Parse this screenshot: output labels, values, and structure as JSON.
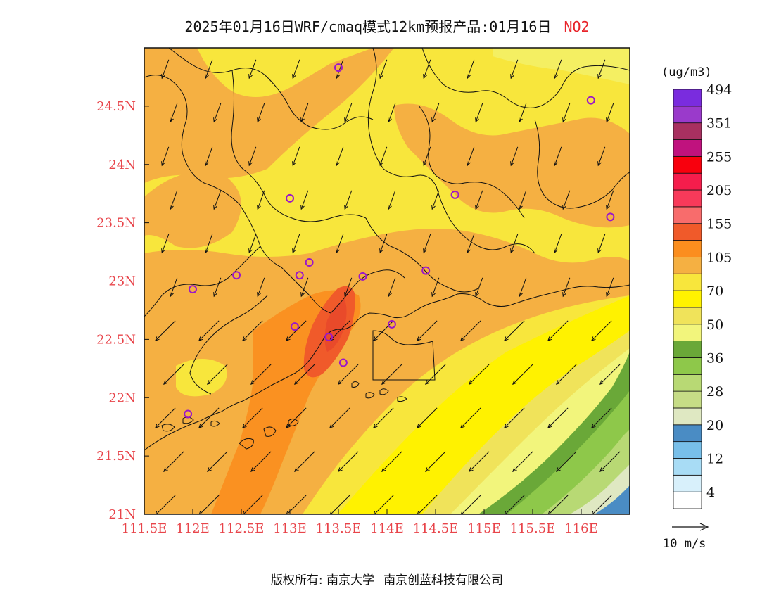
{
  "title": {
    "text": "2025年01月16日WRF/cmaq模式12km预报产品:01月16日",
    "pollutant": "NO2",
    "pollutant_color": "#e8242a"
  },
  "map": {
    "lon_range": [
      111.5,
      116.5
    ],
    "lat_range": [
      21.0,
      25.0
    ],
    "x_ticks": [
      {
        "value": 111.5,
        "label": "111.5E"
      },
      {
        "value": 112.0,
        "label": "112E"
      },
      {
        "value": 112.5,
        "label": "112.5E"
      },
      {
        "value": 113.0,
        "label": "113E"
      },
      {
        "value": 113.5,
        "label": "113.5E"
      },
      {
        "value": 114.0,
        "label": "114E"
      },
      {
        "value": 114.5,
        "label": "114.5E"
      },
      {
        "value": 115.0,
        "label": "115E"
      },
      {
        "value": 115.5,
        "label": "115.5E"
      },
      {
        "value": 116.0,
        "label": "116E"
      }
    ],
    "y_ticks": [
      {
        "value": 21.0,
        "label": "21N"
      },
      {
        "value": 21.5,
        "label": "21.5N"
      },
      {
        "value": 22.0,
        "label": "22N"
      },
      {
        "value": 22.5,
        "label": "22.5N"
      },
      {
        "value": 23.0,
        "label": "23N"
      },
      {
        "value": 23.5,
        "label": "23.5N"
      },
      {
        "value": 24.0,
        "label": "24N"
      },
      {
        "value": 24.5,
        "label": "24.5N"
      }
    ],
    "tick_color": "#e8444a",
    "wind_direction": "northeast",
    "stations": [
      {
        "lon": 113.5,
        "lat": 24.83
      },
      {
        "lon": 116.1,
        "lat": 24.55
      },
      {
        "lon": 113.0,
        "lat": 23.71
      },
      {
        "lon": 114.7,
        "lat": 23.74
      },
      {
        "lon": 116.3,
        "lat": 23.55
      },
      {
        "lon": 113.2,
        "lat": 23.16
      },
      {
        "lon": 112.45,
        "lat": 23.05
      },
      {
        "lon": 113.1,
        "lat": 23.05
      },
      {
        "lon": 113.75,
        "lat": 23.04
      },
      {
        "lon": 114.4,
        "lat": 23.09
      },
      {
        "lon": 112.0,
        "lat": 22.93
      },
      {
        "lon": 113.05,
        "lat": 22.61
      },
      {
        "lon": 113.4,
        "lat": 22.52
      },
      {
        "lon": 114.05,
        "lat": 22.63
      },
      {
        "lon": 113.55,
        "lat": 22.3
      },
      {
        "lon": 111.95,
        "lat": 21.86
      }
    ]
  },
  "colorbar": {
    "unit": "(ug/m3)",
    "colors": [
      "#ffffff",
      "#d8f0fb",
      "#a8dcf5",
      "#78bfe9",
      "#4a8cc4",
      "#dfe8c2",
      "#c6dc86",
      "#b8d974",
      "#8ec84a",
      "#6aa838",
      "#f2f57c",
      "#f0e35a",
      "#fff200",
      "#f8e63c",
      "#f5b042",
      "#fb8e1e",
      "#f05a2a",
      "#f86c6c",
      "#f83a5a",
      "#f51d4c",
      "#f8000d",
      "#c0127e",
      "#a83060",
      "#9a3acb",
      "#7a2cde"
    ],
    "labels": [
      {
        "index": 1,
        "text": "4"
      },
      {
        "index": 3,
        "text": "12"
      },
      {
        "index": 5,
        "text": "20"
      },
      {
        "index": 7,
        "text": "28"
      },
      {
        "index": 9,
        "text": "36"
      },
      {
        "index": 11,
        "text": "50"
      },
      {
        "index": 13,
        "text": "70"
      },
      {
        "index": 15,
        "text": "105"
      },
      {
        "index": 17,
        "text": "155"
      },
      {
        "index": 19,
        "text": "205"
      },
      {
        "index": 21,
        "text": "255"
      },
      {
        "index": 23,
        "text": "351"
      },
      {
        "index": 25,
        "text": "494"
      }
    ]
  },
  "wind_reference": {
    "label": "10 m/s"
  },
  "footer": {
    "left": "版权所有: 南京大学",
    "right": "南京创蓝科技有限公司"
  }
}
